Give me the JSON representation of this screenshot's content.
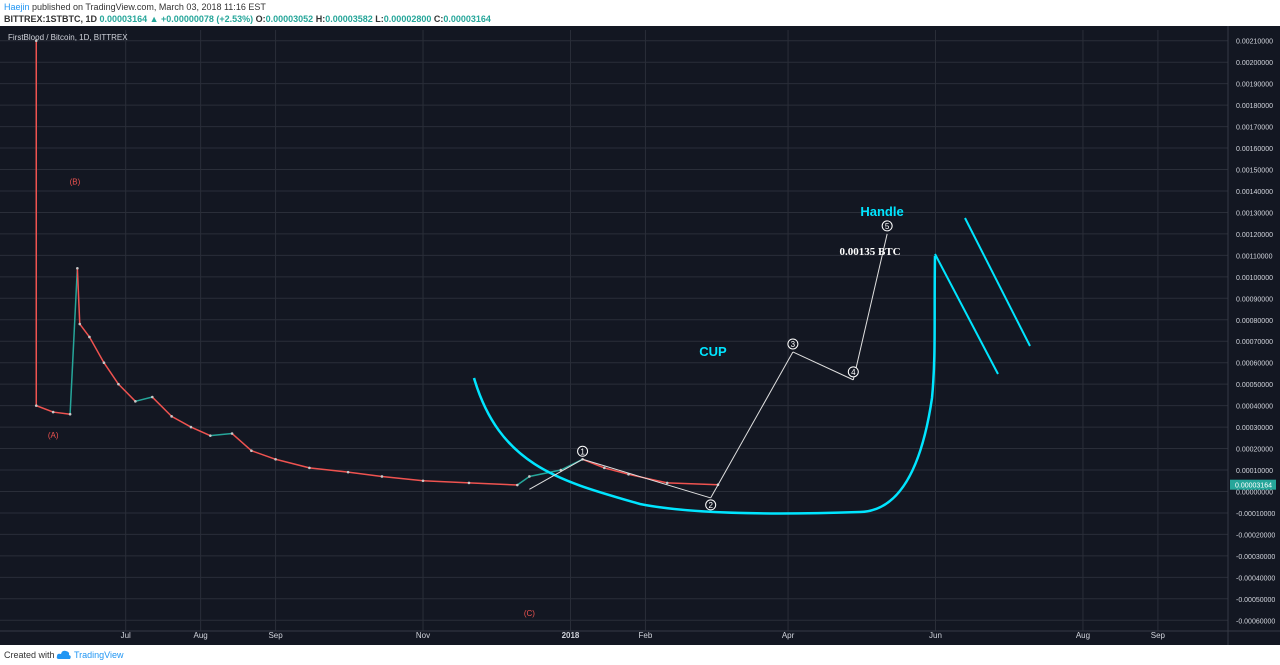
{
  "header": {
    "author": "Haejin",
    "published_text": " published on TradingView.com, March 03, 2018 11:16 EST",
    "symbol": "BITTREX:1STBTC, 1D",
    "last": "0.00003164",
    "change": "+0.00000078 (+2.53%)",
    "open_label": "O:",
    "open": "0.00003052",
    "high_label": "H:",
    "high": "0.00003582",
    "low_label": "L:",
    "low": "0.00002800",
    "close_label": "C:",
    "close": "0.00003164"
  },
  "footer": {
    "created_with": "Created with",
    "brand": "TradingView"
  },
  "colors": {
    "background": "#131722",
    "up": "#26a69a",
    "down": "#ef5350",
    "annotation": "#00e5ff",
    "grid": "#2a2e39"
  },
  "chart_data": {
    "type": "line",
    "title": "FirstBlood / Bitcoin, 1D, BITTREX",
    "xlabel": "",
    "ylabel": "",
    "grid": true,
    "ylim": [
      -0.00065,
      0.00215
    ],
    "yticks": [
      "0.00210000",
      "0.00200000",
      "0.00190000",
      "0.00180000",
      "0.00170000",
      "0.00160000",
      "0.00150000",
      "0.00140000",
      "0.00130000",
      "0.00120000",
      "0.00110000",
      "0.00100000",
      "0.00090000",
      "0.00080000",
      "0.00070000",
      "0.00060000",
      "0.00050000",
      "0.00040000",
      "0.00030000",
      "0.00020000",
      "0.00010000",
      "0.00000000",
      "-0.00010000",
      "-0.00020000",
      "-0.00030000",
      "-0.00040000",
      "-0.00050000",
      "-0.00060000"
    ],
    "xlim": [
      "2017-05-10",
      "2018-09-30"
    ],
    "xticks": [
      {
        "date": "2017-07-01",
        "label": "Jul"
      },
      {
        "date": "2017-08-01",
        "label": "Aug"
      },
      {
        "date": "2017-09-01",
        "label": "Sep"
      },
      {
        "date": "2017-11-01",
        "label": "Nov"
      },
      {
        "date": "2018-01-01",
        "label": "2018"
      },
      {
        "date": "2018-02-01",
        "label": "Feb"
      },
      {
        "date": "2018-04-01",
        "label": "Apr"
      },
      {
        "date": "2018-06-01",
        "label": "Jun"
      },
      {
        "date": "2018-08-01",
        "label": "Aug"
      },
      {
        "date": "2018-09-01",
        "label": "Sep"
      }
    ],
    "price_series": [
      {
        "date": "2017-05-25",
        "value": 0.0021
      },
      {
        "date": "2017-05-25",
        "value": 0.0004
      },
      {
        "date": "2017-06-01",
        "value": 0.00037
      },
      {
        "date": "2017-06-08",
        "value": 0.00036
      },
      {
        "date": "2017-06-11",
        "value": 0.00104
      },
      {
        "date": "2017-06-12",
        "value": 0.00078
      },
      {
        "date": "2017-06-16",
        "value": 0.00072
      },
      {
        "date": "2017-06-22",
        "value": 0.0006
      },
      {
        "date": "2017-06-28",
        "value": 0.0005
      },
      {
        "date": "2017-07-05",
        "value": 0.00042
      },
      {
        "date": "2017-07-12",
        "value": 0.00044
      },
      {
        "date": "2017-07-20",
        "value": 0.00035
      },
      {
        "date": "2017-07-28",
        "value": 0.0003
      },
      {
        "date": "2017-08-05",
        "value": 0.00026
      },
      {
        "date": "2017-08-14",
        "value": 0.00027
      },
      {
        "date": "2017-08-22",
        "value": 0.00019
      },
      {
        "date": "2017-09-01",
        "value": 0.00015
      },
      {
        "date": "2017-09-15",
        "value": 0.00011
      },
      {
        "date": "2017-10-01",
        "value": 9e-05
      },
      {
        "date": "2017-10-15",
        "value": 7e-05
      },
      {
        "date": "2017-11-01",
        "value": 5e-05
      },
      {
        "date": "2017-11-20",
        "value": 4e-05
      },
      {
        "date": "2017-12-10",
        "value": 3e-05
      },
      {
        "date": "2017-12-15",
        "value": 7e-05
      },
      {
        "date": "2017-12-28",
        "value": 0.0001
      },
      {
        "date": "2018-01-06",
        "value": 0.00015
      },
      {
        "date": "2018-01-15",
        "value": 0.00011
      },
      {
        "date": "2018-01-25",
        "value": 8e-05
      },
      {
        "date": "2018-02-10",
        "value": 4e-05
      },
      {
        "date": "2018-03-03",
        "value": 3.164e-05
      }
    ],
    "annotations": {
      "waves_abc": [
        {
          "label": "(A)",
          "date": "2017-06-01",
          "value": 0.00025
        },
        {
          "label": "(B)",
          "date": "2017-06-10",
          "value": 0.00143
        },
        {
          "label": "(C)",
          "date": "2017-12-15",
          "value": -0.00058
        }
      ],
      "waves_12345": [
        {
          "label": "1",
          "date": "2018-01-06",
          "value": 0.00015
        },
        {
          "label": "2",
          "date": "2018-02-28",
          "value": -3e-05
        },
        {
          "label": "3",
          "date": "2018-04-03",
          "value": 0.00065
        },
        {
          "label": "4",
          "date": "2018-04-28",
          "value": 0.00052
        },
        {
          "label": "5",
          "date": "2018-05-12",
          "value": 0.0012
        }
      ],
      "cup_label": "CUP",
      "handle_label": "Handle",
      "target_label": "0.00135 BTC",
      "last_price_label": "0.00003164"
    }
  }
}
